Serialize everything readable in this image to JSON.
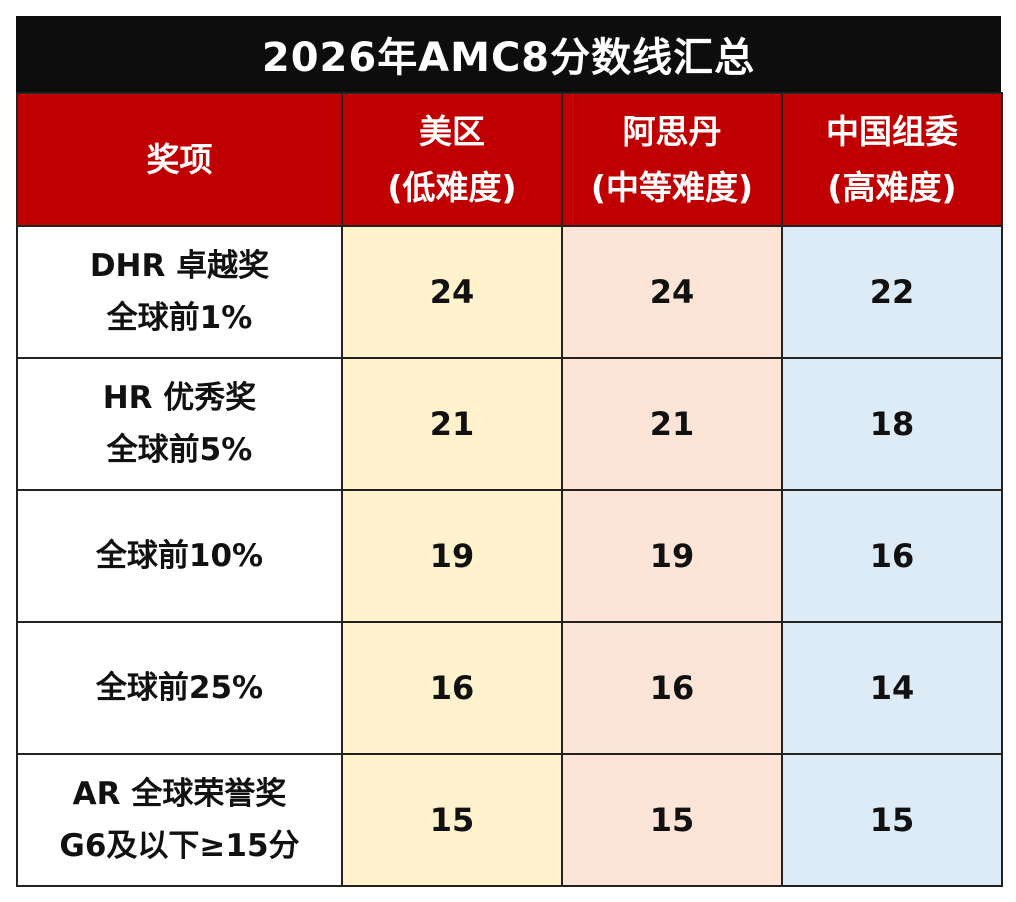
{
  "title": "2026年AMC8分数线汇总",
  "header": {
    "award": "奖项",
    "us_line1": "美区",
    "us_line2": "(低难度)",
    "ad_line1": "阿思丹",
    "ad_line2": "(中等难度)",
    "cn_line1": "中国组委",
    "cn_line2": "(高难度)"
  },
  "rows": [
    {
      "award_line1": "DHR 卓越奖",
      "award_line2": "全球前1%",
      "us": "24",
      "ad": "24",
      "cn": "22"
    },
    {
      "award_line1": "HR 优秀奖",
      "award_line2": "全球前5%",
      "us": "21",
      "ad": "21",
      "cn": "18"
    },
    {
      "award_line1": "全球前10%",
      "award_line2": "",
      "us": "19",
      "ad": "19",
      "cn": "16"
    },
    {
      "award_line1": "全球前25%",
      "award_line2": "",
      "us": "16",
      "ad": "16",
      "cn": "14"
    },
    {
      "award_line1": "AR 全球荣誉奖",
      "award_line2": "G6及以下≥15分",
      "us": "15",
      "ad": "15",
      "cn": "15"
    }
  ],
  "colors": {
    "title_bg": "#0d0d0d",
    "header_bg": "#c00000",
    "us_col": "#fff2cc",
    "ad_col": "#fce4d6",
    "cn_col": "#ddebf7"
  }
}
